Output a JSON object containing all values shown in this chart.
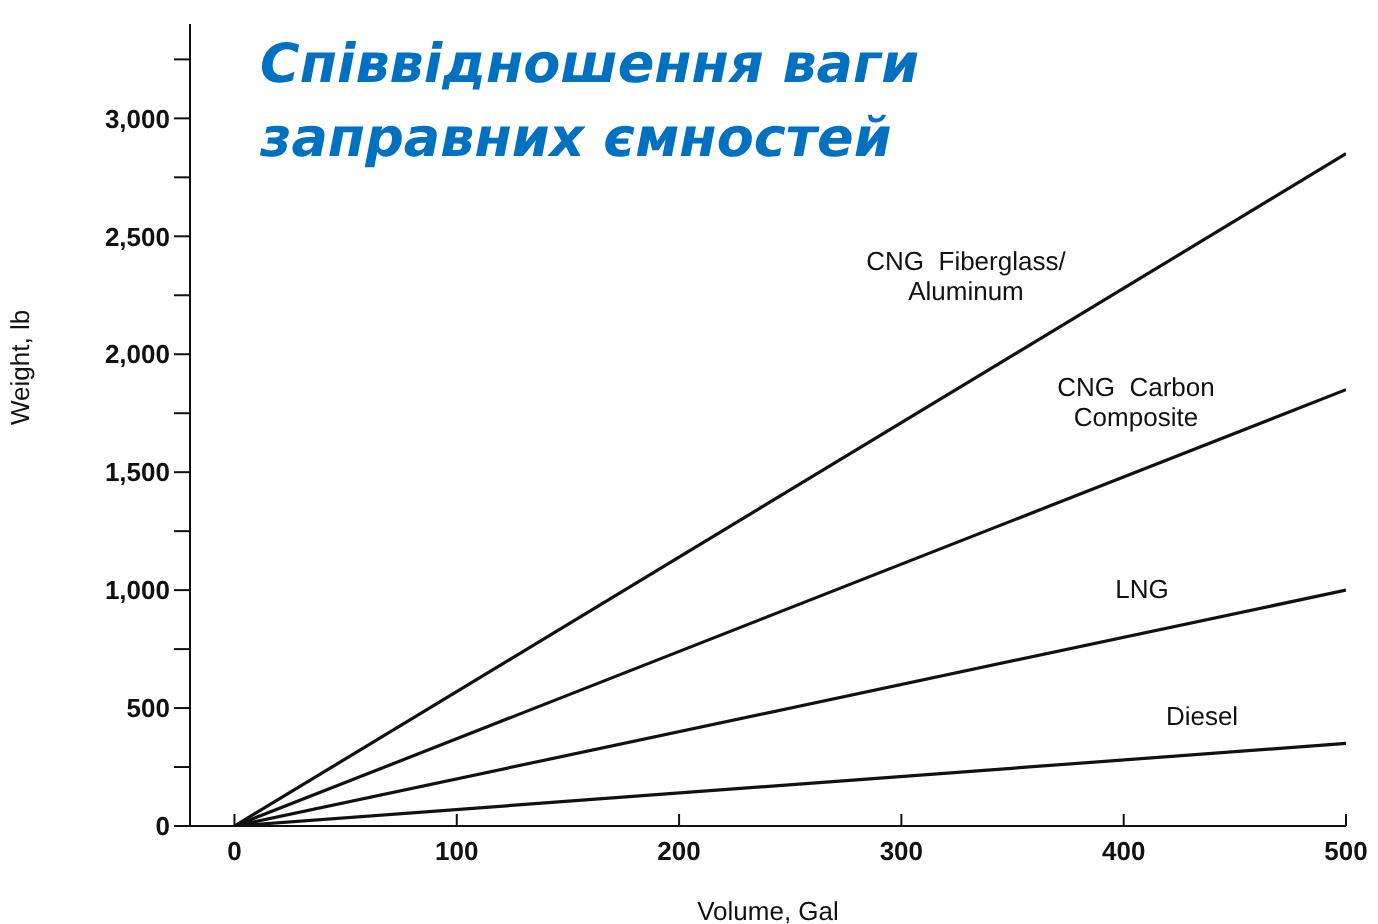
{
  "chart_data": {
    "type": "line",
    "title": "Співвідношення ваги\nзаправних ємностей",
    "xlabel": "Volume, Gal",
    "ylabel": "Weight, lb",
    "x": [
      0,
      500
    ],
    "series": [
      {
        "name": "CNG  Fiberglass/\nAluminum",
        "color": "#111111",
        "values": [
          0,
          2850
        ]
      },
      {
        "name": "CNG  Carbon\nComposite",
        "color": "#111111",
        "values": [
          0,
          1850
        ]
      },
      {
        "name": "LNG",
        "color": "#111111",
        "values": [
          0,
          1000
        ]
      },
      {
        "name": "Diesel",
        "color": "#111111",
        "values": [
          0,
          350
        ]
      }
    ],
    "xlim": [
      -20,
      500
    ],
    "xticks": [
      0,
      100,
      200,
      300,
      400,
      500
    ],
    "ylim": [
      0,
      3400
    ],
    "yticks": [
      0,
      {
        "value": 250,
        "label": null
      },
      {
        "value": 500,
        "label": "500"
      },
      {
        "value": 750,
        "label": null
      },
      {
        "value": 1000,
        "label": "1,000"
      },
      {
        "value": 1250,
        "label": null
      },
      {
        "value": 1500,
        "label": "1,500"
      },
      {
        "value": 1750,
        "label": null
      },
      {
        "value": 2000,
        "label": "2,000"
      },
      {
        "value": 2250,
        "label": null
      },
      {
        "value": 2500,
        "label": "2,500"
      },
      {
        "value": 2750,
        "label": null
      },
      {
        "value": 3000,
        "label": "3,000"
      },
      {
        "value": 3250,
        "label": null
      }
    ],
    "grid": false,
    "legend": false,
    "marker": "none",
    "line_style": "solid"
  }
}
